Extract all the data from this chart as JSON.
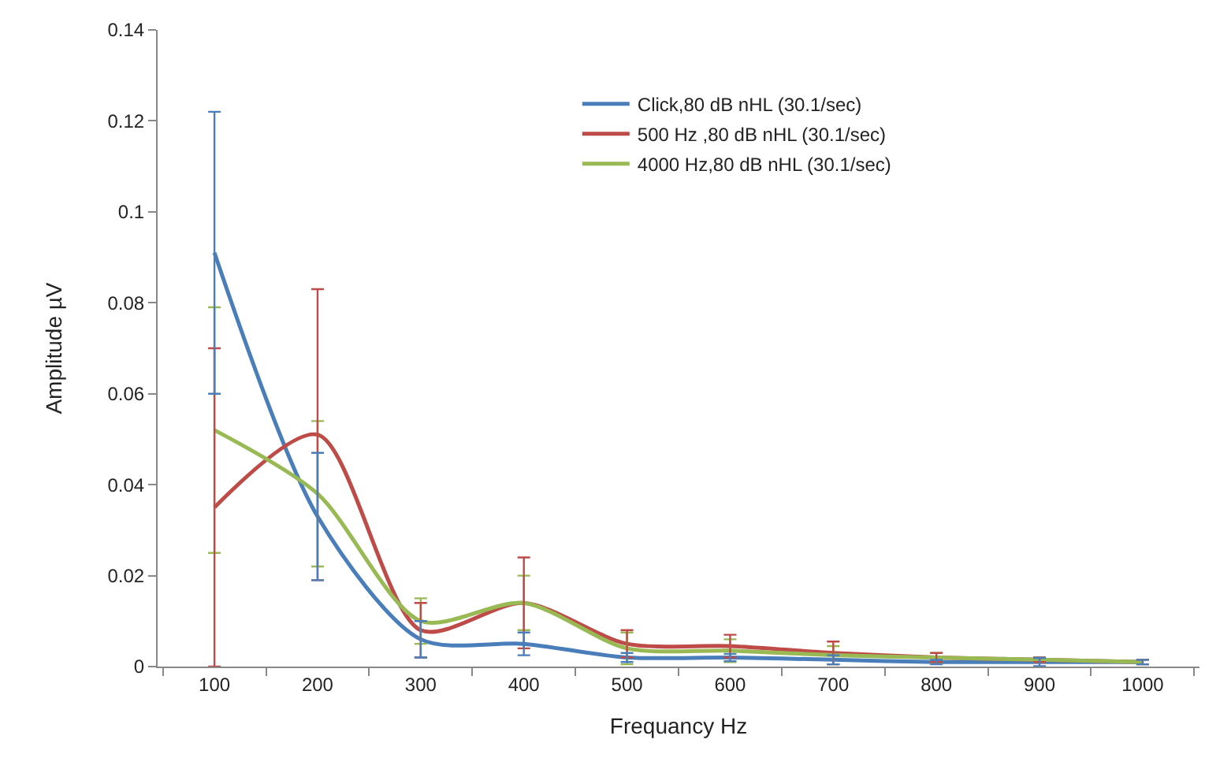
{
  "chart_data": {
    "type": "line",
    "xlabel": "Frequancy Hz",
    "ylabel": "Amplitude µV",
    "categories": [
      "100",
      "200",
      "300",
      "400",
      "500",
      "600",
      "700",
      "800",
      "900",
      "1000"
    ],
    "series": [
      {
        "name": "Click,80 dB nHL (30.1/sec)",
        "color": "#4a7ebb",
        "values": [
          0.091,
          0.033,
          0.006,
          0.005,
          0.002,
          0.002,
          0.0015,
          0.001,
          0.001,
          0.001
        ],
        "errors": [
          0.031,
          0.014,
          0.004,
          0.0025,
          0.001,
          0.0008,
          0.001,
          0.0005,
          0.0009,
          0.0005
        ]
      },
      {
        "name": "500 Hz ,80 dB nHL (30.1/sec)",
        "color": "#be4b48",
        "values": [
          0.035,
          0.051,
          0.008,
          0.014,
          0.005,
          0.0045,
          0.003,
          0.002,
          0.0015,
          0.001
        ],
        "errors": [
          0.035,
          0.032,
          0.006,
          0.01,
          0.003,
          0.0025,
          0.0025,
          0.001,
          0.0005,
          0.0005
        ]
      },
      {
        "name": "4000 Hz,80 dB nHL (30.1/sec)",
        "color": "#98b954",
        "values": [
          0.052,
          0.038,
          0.01,
          0.014,
          0.004,
          0.0035,
          0.0025,
          0.002,
          0.0015,
          0.001
        ],
        "errors": [
          0.027,
          0.016,
          0.005,
          0.006,
          0.0035,
          0.0025,
          0.002,
          0.001,
          0.0005,
          0.0005
        ]
      }
    ],
    "ylim": [
      0,
      0.14
    ],
    "yticks": [
      0,
      0.02,
      0.04,
      0.06,
      0.08,
      0.1,
      0.12,
      0.14
    ],
    "legend": "top right",
    "line_style": "solid",
    "marker": "none"
  }
}
